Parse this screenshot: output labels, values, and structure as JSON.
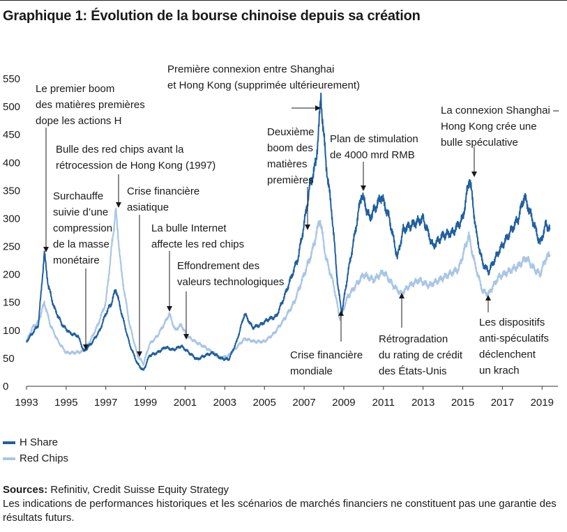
{
  "title": "Graphique 1: Évolution de la bourse chinoise depuis sa création",
  "chart_data": {
    "type": "line",
    "title": "Graphique 1: Évolution de la bourse chinoise depuis sa création",
    "xlabel": "",
    "ylabel": "",
    "xlim": [
      1993.0,
      2019.8
    ],
    "ylim": [
      0,
      550
    ],
    "xticks": [
      "1993",
      "1995",
      "1997",
      "1999",
      "2001",
      "2003",
      "2005",
      "2007",
      "2009",
      "2011",
      "2013",
      "2015",
      "2017",
      "2019"
    ],
    "yticks": [
      "0",
      "50",
      "100",
      "150",
      "200",
      "250",
      "300",
      "350",
      "400",
      "450",
      "500",
      "550"
    ],
    "grid": false,
    "legend": "bottom-left",
    "series": [
      {
        "name": "H Share",
        "color": "#1f5fa0",
        "points": [
          [
            1993.0,
            80
          ],
          [
            1993.3,
            95
          ],
          [
            1993.6,
            110
          ],
          [
            1993.9,
            238
          ],
          [
            1994.1,
            180
          ],
          [
            1994.4,
            140
          ],
          [
            1994.8,
            110
          ],
          [
            1995.2,
            95
          ],
          [
            1995.6,
            90
          ],
          [
            1995.9,
            62
          ],
          [
            1996.3,
            78
          ],
          [
            1996.7,
            100
          ],
          [
            1997.0,
            130
          ],
          [
            1997.3,
            150
          ],
          [
            1997.5,
            175
          ],
          [
            1997.8,
            130
          ],
          [
            1998.2,
            75
          ],
          [
            1998.6,
            40
          ],
          [
            1998.9,
            28
          ],
          [
            1999.2,
            55
          ],
          [
            1999.6,
            60
          ],
          [
            2000.0,
            70
          ],
          [
            2000.4,
            65
          ],
          [
            2000.8,
            72
          ],
          [
            2001.2,
            60
          ],
          [
            2001.6,
            48
          ],
          [
            2002.0,
            55
          ],
          [
            2002.4,
            60
          ],
          [
            2002.8,
            50
          ],
          [
            2003.2,
            48
          ],
          [
            2003.6,
            80
          ],
          [
            2004.0,
            130
          ],
          [
            2004.4,
            105
          ],
          [
            2004.8,
            110
          ],
          [
            2005.2,
            120
          ],
          [
            2005.6,
            125
          ],
          [
            2006.0,
            160
          ],
          [
            2006.4,
            200
          ],
          [
            2006.7,
            230
          ],
          [
            2007.0,
            290
          ],
          [
            2007.3,
            360
          ],
          [
            2007.6,
            400
          ],
          [
            2007.85,
            515
          ],
          [
            2008.1,
            400
          ],
          [
            2008.4,
            310
          ],
          [
            2008.7,
            180
          ],
          [
            2008.9,
            130
          ],
          [
            2009.2,
            200
          ],
          [
            2009.5,
            260
          ],
          [
            2009.9,
            345
          ],
          [
            2010.3,
            300
          ],
          [
            2010.6,
            320
          ],
          [
            2010.9,
            340
          ],
          [
            2011.3,
            300
          ],
          [
            2011.7,
            230
          ],
          [
            2012.0,
            280
          ],
          [
            2012.5,
            290
          ],
          [
            2013.0,
            300
          ],
          [
            2013.5,
            250
          ],
          [
            2014.0,
            270
          ],
          [
            2014.5,
            275
          ],
          [
            2015.0,
            300
          ],
          [
            2015.35,
            375
          ],
          [
            2015.7,
            270
          ],
          [
            2016.0,
            220
          ],
          [
            2016.3,
            205
          ],
          [
            2016.8,
            240
          ],
          [
            2017.3,
            270
          ],
          [
            2017.8,
            300
          ],
          [
            2018.1,
            340
          ],
          [
            2018.5,
            300
          ],
          [
            2018.9,
            255
          ],
          [
            2019.2,
            290
          ],
          [
            2019.4,
            280
          ]
        ]
      },
      {
        "name": "Red Chips",
        "color": "#a9c6e6",
        "points": [
          [
            1993.0,
            80
          ],
          [
            1993.3,
            105
          ],
          [
            1993.6,
            115
          ],
          [
            1993.9,
            150
          ],
          [
            1994.2,
            110
          ],
          [
            1994.6,
            80
          ],
          [
            1995.0,
            60
          ],
          [
            1995.4,
            60
          ],
          [
            1995.8,
            62
          ],
          [
            1996.2,
            80
          ],
          [
            1996.6,
            110
          ],
          [
            1997.0,
            150
          ],
          [
            1997.3,
            250
          ],
          [
            1997.5,
            315
          ],
          [
            1997.8,
            200
          ],
          [
            1998.2,
            110
          ],
          [
            1998.6,
            55
          ],
          [
            1998.9,
            40
          ],
          [
            1999.2,
            75
          ],
          [
            1999.6,
            90
          ],
          [
            2000.0,
            115
          ],
          [
            2000.2,
            130
          ],
          [
            2000.5,
            100
          ],
          [
            2000.8,
            110
          ],
          [
            2001.1,
            90
          ],
          [
            2001.5,
            80
          ],
          [
            2002.0,
            70
          ],
          [
            2002.4,
            60
          ],
          [
            2002.8,
            50
          ],
          [
            2003.2,
            55
          ],
          [
            2003.6,
            70
          ],
          [
            2004.0,
            85
          ],
          [
            2004.5,
            80
          ],
          [
            2005.0,
            80
          ],
          [
            2005.5,
            95
          ],
          [
            2006.0,
            120
          ],
          [
            2006.5,
            150
          ],
          [
            2007.0,
            200
          ],
          [
            2007.4,
            240
          ],
          [
            2007.8,
            300
          ],
          [
            2008.1,
            230
          ],
          [
            2008.5,
            180
          ],
          [
            2008.8,
            120
          ],
          [
            2009.2,
            160
          ],
          [
            2009.6,
            180
          ],
          [
            2010.0,
            200
          ],
          [
            2010.5,
            190
          ],
          [
            2011.0,
            205
          ],
          [
            2011.5,
            180
          ],
          [
            2011.9,
            165
          ],
          [
            2012.3,
            180
          ],
          [
            2012.8,
            190
          ],
          [
            2013.3,
            180
          ],
          [
            2013.8,
            190
          ],
          [
            2014.3,
            200
          ],
          [
            2014.8,
            210
          ],
          [
            2015.3,
            270
          ],
          [
            2015.6,
            220
          ],
          [
            2016.0,
            170
          ],
          [
            2016.3,
            165
          ],
          [
            2016.8,
            195
          ],
          [
            2017.3,
            205
          ],
          [
            2017.8,
            215
          ],
          [
            2018.2,
            230
          ],
          [
            2018.6,
            210
          ],
          [
            2018.9,
            200
          ],
          [
            2019.2,
            230
          ],
          [
            2019.4,
            235
          ]
        ]
      }
    ],
    "annotations": [
      {
        "lines": [
          "Le premier boom",
          "des matières premières",
          "dope les actions H"
        ]
      },
      {
        "lines": [
          "Bulle des red chips avant la",
          "rétrocession de Hong Kong (1997)"
        ]
      },
      {
        "lines": [
          "Surchauffe",
          "suivie d’une",
          "compression",
          "de la masse",
          "monétaire"
        ]
      },
      {
        "lines": [
          "Crise financière",
          "asiatique"
        ]
      },
      {
        "lines": [
          "La bulle Internet",
          "affecte les red chips"
        ]
      },
      {
        "lines": [
          "Effondrement des",
          "valeurs technologiques"
        ]
      },
      {
        "lines": [
          "Première connexion entre Shanghai",
          "et Hong Kong (supprimée ultérieurement)"
        ]
      },
      {
        "lines": [
          "Deuxième",
          "boom des",
          "matières",
          "premières"
        ]
      },
      {
        "lines": [
          "Plan de stimulation",
          "de 4000 mrd RMB"
        ]
      },
      {
        "lines": [
          "La connexion Shanghai –",
          "Hong Kong crée une",
          "bulle spéculative"
        ]
      },
      {
        "lines": [
          "Crise financière",
          "mondiale"
        ]
      },
      {
        "lines": [
          "Rétrogradation",
          "du rating de crédit",
          "des États-Unis"
        ]
      },
      {
        "lines": [
          "Les dispositifs",
          "anti-spéculatifs",
          "déclenchent",
          "un krach"
        ]
      }
    ]
  },
  "sources": {
    "label": "Sources:",
    "text": " Refinitiv, Credit Suisse Equity Strategy",
    "disclaimer": "Les indications de performances historiques et les scénarios de marchés financiers ne constituent pas une garantie des résultats futurs."
  }
}
